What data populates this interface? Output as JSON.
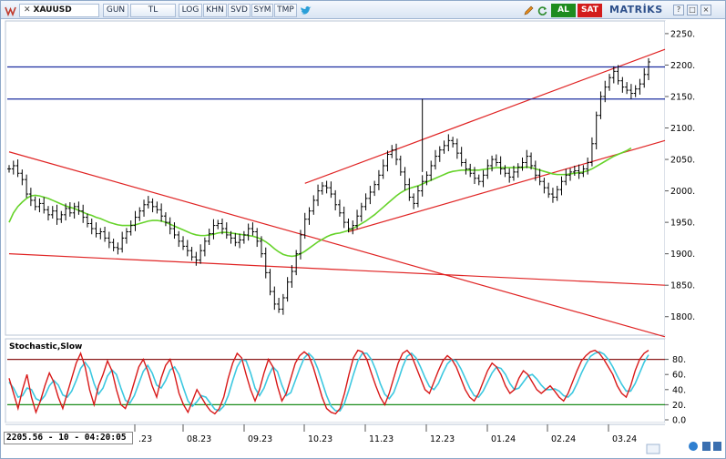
{
  "toolbar": {
    "symbol": "XAUUSD",
    "buttons": [
      "GUN",
      "TL",
      "LOG",
      "KHN",
      "SVD",
      "SYM",
      "TMP"
    ],
    "buy_label": "AL",
    "sell_label": "SAT",
    "brand": "MATRİKS",
    "window_controls": [
      "?",
      "□",
      "×"
    ]
  },
  "status": {
    "readout": "2205.56 - 10 - 04:20:05"
  },
  "indicator": {
    "name": "Stochastic,Slow",
    "levels": [
      80,
      20
    ],
    "ticks": [
      "80.",
      "60.",
      "40.",
      "20.",
      "0.0"
    ]
  },
  "colors": {
    "price": "#000000",
    "trendline": "#e02424",
    "horizontal": "#1c2ea0",
    "moving_average": "#66d32a",
    "stoch_k": "#d81818",
    "stoch_d": "#3cc8e0",
    "level_high": "#8b1a1a",
    "level_low": "#1a8b1a"
  },
  "chart_data": {
    "type": "line",
    "y_ticks": [
      "2250.",
      "2200.",
      "2150.",
      "2100.",
      "2050.",
      "2000.",
      "1950.",
      "1900.",
      "1850.",
      "1800."
    ],
    "x_ticks": [
      ".23",
      "08.23",
      "09.23",
      "10.23",
      "11.23",
      "12.23",
      "01.24",
      "02.24",
      "03.24"
    ],
    "ylim": [
      1775,
      2260
    ],
    "horizontal_levels": [
      2197,
      2146
    ],
    "price_series": [
      2035,
      2040,
      2028,
      2018,
      1995,
      1985,
      1975,
      1980,
      1970,
      1962,
      1968,
      1955,
      1962,
      1972,
      1965,
      1975,
      1968,
      1958,
      1948,
      1940,
      1932,
      1935,
      1925,
      1918,
      1910,
      1908,
      1925,
      1935,
      1945,
      1958,
      1968,
      1978,
      1982,
      1975,
      1970,
      1960,
      1950,
      1940,
      1930,
      1920,
      1912,
      1905,
      1895,
      1890,
      1905,
      1920,
      1932,
      1945,
      1948,
      1940,
      1930,
      1925,
      1918,
      1922,
      1930,
      1940,
      1935,
      1920,
      1900,
      1870,
      1840,
      1820,
      1812,
      1830,
      1855,
      1872,
      1900,
      1930,
      1955,
      1968,
      1985,
      2000,
      2008,
      2005,
      1995,
      1978,
      1965,
      1950,
      1940,
      1945,
      1960,
      1975,
      1988,
      1998,
      2010,
      2025,
      2040,
      2058,
      2065,
      2050,
      2030,
      2010,
      1990,
      1980,
      2000,
      2015,
      2025,
      2040,
      2055,
      2065,
      2072,
      2080,
      2075,
      2060,
      2045,
      2035,
      2028,
      2020,
      2015,
      2025,
      2040,
      2050,
      2045,
      2035,
      2028,
      2022,
      2030,
      2038,
      2045,
      2055,
      2040,
      2025,
      2015,
      2005,
      1995,
      1990,
      2002,
      2015,
      2025,
      2030,
      2032,
      2028,
      2035,
      2045,
      2075,
      2120,
      2150,
      2165,
      2180,
      2190,
      2175,
      2165,
      2160,
      2155,
      2162,
      2170,
      2185,
      2205
    ],
    "ma_series": [
      1950,
      1965,
      1975,
      1982,
      1988,
      1992,
      1993,
      1992,
      1990,
      1988,
      1985,
      1982,
      1979,
      1976,
      1974,
      1972,
      1969,
      1966,
      1963,
      1961,
      1958,
      1956,
      1953,
      1950,
      1948,
      1946,
      1945,
      1945,
      1945,
      1946,
      1948,
      1950,
      1952,
      1953,
      1953,
      1952,
      1950,
      1947,
      1944,
      1941,
      1938,
      1935,
      1932,
      1930,
      1929,
      1929,
      1930,
      1931,
      1933,
      1934,
      1934,
      1933,
      1932,
      1931,
      1930,
      1929,
      1928,
      1926,
      1923,
      1919,
      1914,
      1908,
      1903,
      1899,
      1897,
      1896,
      1897,
      1900,
      1904,
      1909,
      1914,
      1919,
      1923,
      1927,
      1930,
      1932,
      1933,
      1935,
      1937,
      1940,
      1944,
      1948,
      1952,
      1957,
      1962,
      1968,
      1974,
      1980,
      1986,
      1992,
      1997,
      2001,
      2004,
      2006,
      2008,
      2011,
      2014,
      2017,
      2020,
      2023,
      2026,
      2029,
      2031,
      2032,
      2033,
      2033,
      2033,
      2033,
      2033,
      2034,
      2035,
      2036,
      2037,
      2037,
      2037,
      2037,
      2037,
      2037,
      2037,
      2038,
      2037,
      2035,
      2033,
      2031,
      2029,
      2027,
      2026,
      2026,
      2026,
      2027,
      2028,
      2029,
      2030,
      2032,
      2035,
      2039,
      2043,
      2047,
      2051,
      2055,
      2058,
      2061,
      2064,
      2068
    ],
    "stoch_k": [
      55,
      35,
      15,
      40,
      60,
      30,
      10,
      25,
      45,
      62,
      50,
      30,
      15,
      35,
      55,
      75,
      88,
      70,
      40,
      20,
      45,
      60,
      78,
      65,
      40,
      20,
      15,
      30,
      50,
      70,
      80,
      65,
      45,
      30,
      55,
      72,
      80,
      60,
      35,
      20,
      10,
      25,
      40,
      30,
      20,
      12,
      8,
      15,
      30,
      55,
      75,
      88,
      82,
      60,
      40,
      25,
      40,
      62,
      80,
      70,
      45,
      25,
      35,
      55,
      75,
      85,
      90,
      85,
      70,
      50,
      30,
      15,
      10,
      8,
      15,
      35,
      60,
      82,
      92,
      90,
      80,
      62,
      45,
      30,
      20,
      35,
      55,
      75,
      88,
      92,
      85,
      70,
      55,
      40,
      35,
      50,
      65,
      78,
      85,
      80,
      70,
      55,
      40,
      30,
      25,
      35,
      50,
      65,
      75,
      70,
      60,
      45,
      35,
      40,
      55,
      65,
      60,
      50,
      40,
      35,
      40,
      45,
      38,
      30,
      25,
      35,
      50,
      65,
      78,
      85,
      90,
      92,
      88,
      80,
      70,
      60,
      45,
      35,
      30,
      45,
      65,
      80,
      88,
      92
    ],
    "stoch_d": [
      50,
      42,
      30,
      32,
      42,
      40,
      28,
      25,
      32,
      45,
      52,
      46,
      33,
      30,
      38,
      52,
      68,
      76,
      68,
      48,
      34,
      42,
      58,
      66,
      60,
      42,
      26,
      22,
      32,
      48,
      64,
      72,
      62,
      46,
      42,
      52,
      66,
      70,
      60,
      42,
      25,
      18,
      24,
      32,
      30,
      22,
      14,
      12,
      18,
      32,
      52,
      70,
      80,
      78,
      62,
      42,
      32,
      42,
      58,
      70,
      64,
      46,
      32,
      36,
      52,
      68,
      82,
      88,
      82,
      68,
      50,
      32,
      18,
      12,
      12,
      22,
      40,
      60,
      78,
      88,
      88,
      80,
      66,
      48,
      34,
      28,
      36,
      52,
      70,
      84,
      88,
      82,
      70,
      56,
      44,
      40,
      48,
      62,
      74,
      80,
      78,
      68,
      55,
      42,
      32,
      30,
      38,
      50,
      62,
      70,
      68,
      60,
      48,
      40,
      42,
      50,
      58,
      60,
      54,
      46,
      40,
      40,
      41,
      38,
      32,
      30,
      36,
      48,
      62,
      74,
      84,
      88,
      90,
      87,
      80,
      70,
      58,
      47,
      38,
      38,
      48,
      62,
      76,
      86
    ]
  }
}
